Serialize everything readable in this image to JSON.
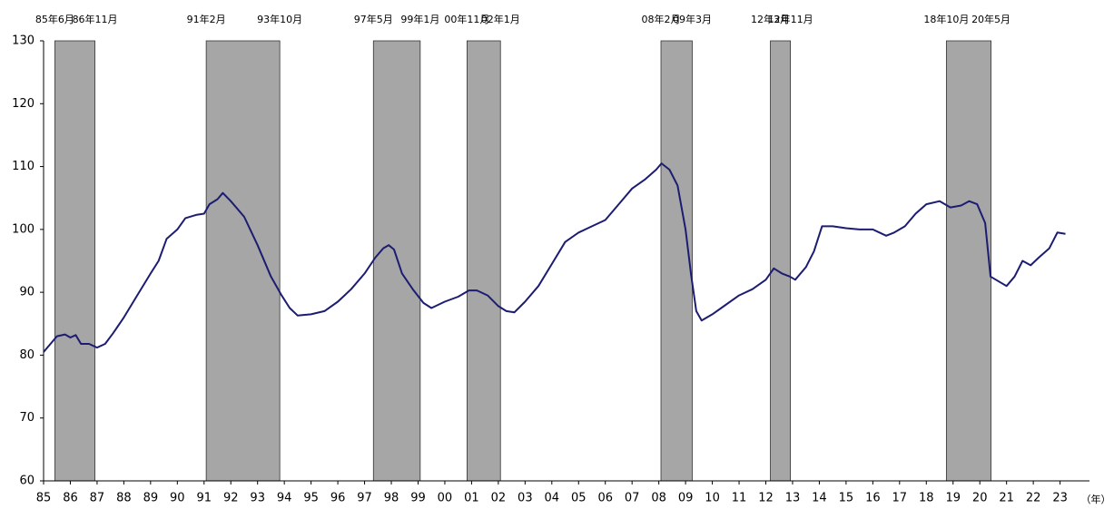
{
  "chart_data": {
    "type": "line",
    "x": [
      1985.0,
      1985.3,
      1985.5,
      1985.8,
      1986.0,
      1986.2,
      1986.4,
      1986.7,
      1987.0,
      1987.3,
      1987.6,
      1988.0,
      1988.5,
      1989.0,
      1989.3,
      1989.6,
      1990.0,
      1990.3,
      1990.7,
      1991.0,
      1991.2,
      1991.5,
      1991.7,
      1992.0,
      1992.5,
      1993.0,
      1993.5,
      1993.9,
      1994.2,
      1994.5,
      1995.0,
      1995.5,
      1996.0,
      1996.5,
      1997.0,
      1997.4,
      1997.7,
      1997.9,
      1998.1,
      1998.4,
      1998.8,
      1999.2,
      1999.5,
      2000.0,
      2000.5,
      2000.9,
      2001.2,
      2001.6,
      2002.0,
      2002.3,
      2002.6,
      2003.0,
      2003.5,
      2004.0,
      2004.5,
      2005.0,
      2005.5,
      2006.0,
      2006.5,
      2007.0,
      2007.5,
      2007.9,
      2008.1,
      2008.4,
      2008.7,
      2009.0,
      2009.2,
      2009.4,
      2009.6,
      2010.0,
      2010.5,
      2011.0,
      2011.5,
      2012.0,
      2012.3,
      2012.6,
      2012.9,
      2013.1,
      2013.5,
      2013.8,
      2014.1,
      2014.5,
      2015.0,
      2015.5,
      2016.0,
      2016.5,
      2016.8,
      2017.2,
      2017.6,
      2018.0,
      2018.5,
      2018.9,
      2019.3,
      2019.6,
      2019.9,
      2020.2,
      2020.4,
      2020.8,
      2021.0,
      2021.3,
      2021.6,
      2021.9,
      2022.2,
      2022.6,
      2022.9,
      2023.2
    ],
    "series": [
      {
        "color": "#1c1c72",
        "values": [
          80.5,
          82,
          83,
          83.3,
          82.8,
          83.2,
          81.8,
          81.8,
          81.2,
          81.8,
          83.5,
          86,
          89.5,
          93,
          95,
          98.5,
          100,
          101.8,
          102.3,
          102.5,
          104,
          104.8,
          105.8,
          104.5,
          102,
          97.5,
          92.5,
          89.5,
          87.5,
          86.3,
          86.5,
          87,
          88.5,
          90.5,
          93,
          95.5,
          97,
          97.5,
          96.8,
          93,
          90.5,
          88.3,
          87.5,
          88.5,
          89.3,
          90.3,
          90.3,
          89.5,
          87.8,
          87,
          86.8,
          88.5,
          91,
          94.5,
          98,
          99.5,
          100.5,
          101.5,
          104,
          106.5,
          108,
          109.5,
          110.5,
          109.5,
          107,
          100,
          93,
          87,
          85.5,
          86.5,
          88,
          89.5,
          90.5,
          92,
          93.8,
          93,
          92.5,
          92,
          94,
          96.5,
          100.5,
          100.5,
          100.2,
          100,
          100,
          99,
          99.5,
          100.5,
          102.5,
          104,
          104.5,
          103.5,
          103.8,
          104.5,
          104,
          101,
          92.5,
          91.5,
          91,
          92.5,
          95,
          94.3,
          95.5,
          97,
          99.5,
          99.3
        ]
      }
    ],
    "xlim": [
      1985,
      2024.1
    ],
    "xticks": [
      {
        "value": 1985,
        "label": "85"
      },
      {
        "value": 1986,
        "label": "86"
      },
      {
        "value": 1987,
        "label": "87"
      },
      {
        "value": 1988,
        "label": "88"
      },
      {
        "value": 1989,
        "label": "89"
      },
      {
        "value": 1990,
        "label": "90"
      },
      {
        "value": 1991,
        "label": "91"
      },
      {
        "value": 1992,
        "label": "92"
      },
      {
        "value": 1993,
        "label": "93"
      },
      {
        "value": 1994,
        "label": "94"
      },
      {
        "value": 1995,
        "label": "95"
      },
      {
        "value": 1996,
        "label": "96"
      },
      {
        "value": 1997,
        "label": "97"
      },
      {
        "value": 1998,
        "label": "98"
      },
      {
        "value": 1999,
        "label": "99"
      },
      {
        "value": 2000,
        "label": "00"
      },
      {
        "value": 2001,
        "label": "01"
      },
      {
        "value": 2002,
        "label": "02"
      },
      {
        "value": 2003,
        "label": "03"
      },
      {
        "value": 2004,
        "label": "04"
      },
      {
        "value": 2005,
        "label": "05"
      },
      {
        "value": 2006,
        "label": "06"
      },
      {
        "value": 2007,
        "label": "07"
      },
      {
        "value": 2008,
        "label": "08"
      },
      {
        "value": 2009,
        "label": "09"
      },
      {
        "value": 2010,
        "label": "10"
      },
      {
        "value": 2011,
        "label": "11"
      },
      {
        "value": 2012,
        "label": "12"
      },
      {
        "value": 2013,
        "label": "13"
      },
      {
        "value": 2014,
        "label": "14"
      },
      {
        "value": 2015,
        "label": "15"
      },
      {
        "value": 2016,
        "label": "16"
      },
      {
        "value": 2017,
        "label": "17"
      },
      {
        "value": 2018,
        "label": "18"
      },
      {
        "value": 2019,
        "label": "19"
      },
      {
        "value": 2020,
        "label": "20"
      },
      {
        "value": 2021,
        "label": "21"
      },
      {
        "value": 2022,
        "label": "22"
      },
      {
        "value": 2023,
        "label": "23"
      }
    ],
    "x_label": "（年）",
    "ylim": [
      60,
      130
    ],
    "yticks": [
      60,
      70,
      80,
      90,
      100,
      110,
      120,
      130
    ],
    "shade_color": "#a6a6a6",
    "shaded_regions": [
      {
        "start": 1985.42,
        "end": 1986.92,
        "start_label": "85年6月",
        "end_label": "86年11月"
      },
      {
        "start": 1991.08,
        "end": 1993.83,
        "start_label": "91年2月",
        "end_label": "93年10月"
      },
      {
        "start": 1997.33,
        "end": 1999.08,
        "start_label": "97年5月",
        "end_label": "99年1月"
      },
      {
        "start": 2000.83,
        "end": 2002.08,
        "start_label": "00年11月",
        "end_label": "02年1月"
      },
      {
        "start": 2008.08,
        "end": 2009.25,
        "start_label": "08年2月",
        "end_label": "09年3月"
      },
      {
        "start": 2012.17,
        "end": 2012.92,
        "start_label": "12年3月",
        "end_label": "12年11月"
      },
      {
        "start": 2018.75,
        "end": 2020.42,
        "start_label": "18年10月",
        "end_label": "20年5月"
      }
    ]
  }
}
